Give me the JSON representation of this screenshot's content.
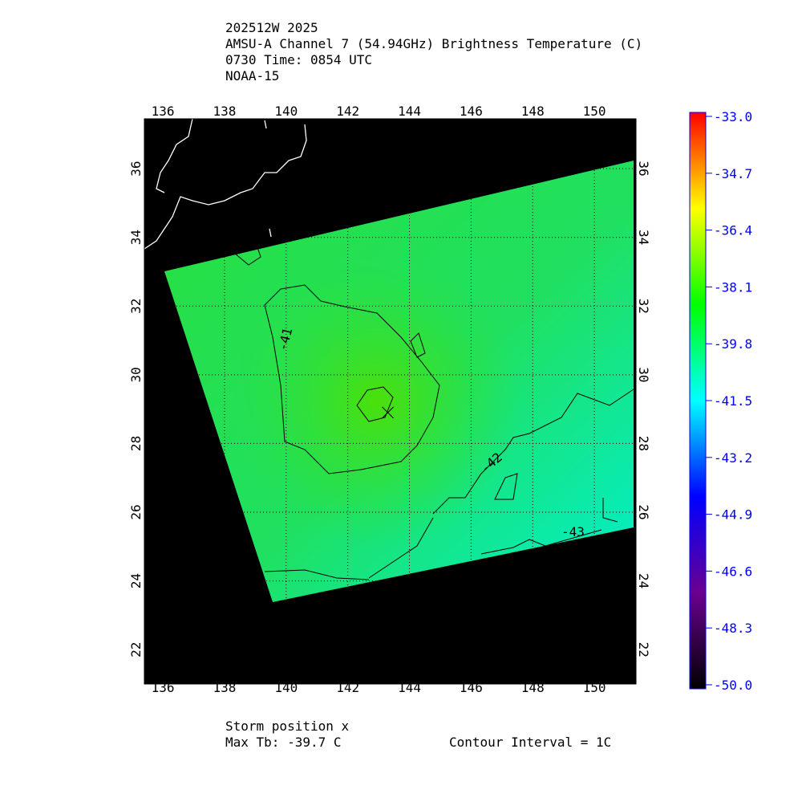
{
  "chart_data": {
    "type": "map",
    "title_lines": [
      "202512W 2025",
      "AMSU-A Channel 7 (54.94GHz) Brightness Temperature (C)",
      "0730 Time: 0854 UTC",
      "NOAA-15"
    ],
    "xlim": [
      135.4,
      151.35
    ],
    "xticks": [
      136,
      138,
      140,
      142,
      144,
      146,
      148,
      150
    ],
    "ylim": [
      21.0,
      37.45
    ],
    "yticks": [
      22,
      24,
      26,
      28,
      30,
      32,
      34,
      36
    ],
    "grid": true,
    "colorbar": {
      "clim": [
        -50,
        -33
      ],
      "ticks": [
        {
          "value": -33,
          "label": "-33.0"
        },
        -34.7,
        -36.4,
        -38.1,
        -39.8,
        -41.5,
        -43.2,
        -44.9,
        -46.6,
        -48.3,
        {
          "value": -50,
          "label": "-50.0"
        }
      ],
      "colormap": [
        "#000000",
        "#6a0090",
        "#0000ff",
        "#00ffff",
        "#00ff00",
        "#ffff00",
        "#ff0000"
      ]
    },
    "storm_position": {
      "x": 143.3,
      "y": 28.9
    },
    "contour_labels": [
      "-41",
      "-42",
      "-43"
    ],
    "footer": {
      "storm": "Storm position x",
      "max_tb": "Max Tb: -39.7    C",
      "interval": "Contour Interval = 1C"
    }
  }
}
